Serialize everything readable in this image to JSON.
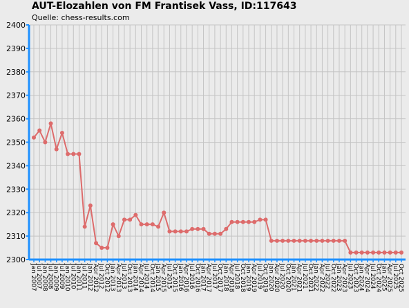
{
  "title": "AUT-Elozahlen von FM Frantisek Vass, ID:117643",
  "subtitle": "Quelle: chess-results.com",
  "colors": {
    "background": "#ebebeb",
    "grid": "#c4c4c4",
    "axis": "#1e90ff",
    "line": "#dd6b6b",
    "marker": "#dd6b6b"
  },
  "chart_data": {
    "type": "line",
    "title": "AUT-Elozahlen von FM Frantisek Vass, ID:117643",
    "subtitle": "Quelle: chess-results.com",
    "xlabel": "",
    "ylabel": "",
    "ylim": [
      2300,
      2400
    ],
    "yticks": [
      2300,
      2310,
      2320,
      2330,
      2340,
      2350,
      2360,
      2370,
      2380,
      2390,
      2400
    ],
    "grid": true,
    "legend": "none",
    "categories": [
      "Jan 2007",
      "Jul 2007",
      "Jan 2008",
      "Jul 2008",
      "Jan 2009",
      "Jul 2009",
      "Jan 2010",
      "Jul 2010",
      "Jan 2011",
      "Jul 2011",
      "Jan 2012",
      "Apr 2012",
      "Jul 2012",
      "Oct 2012",
      "Jan 2013",
      "Apr 2013",
      "Jul 2013",
      "Oct 2013",
      "Jan 2014",
      "Apr 2014",
      "Jul 2014",
      "Oct 2014",
      "Jan 2015",
      "Apr 2015",
      "Jul 2015",
      "Oct 2015",
      "Jan 2016",
      "Apr 2016",
      "Jul 2016",
      "Oct 2016",
      "Jan 2017",
      "Apr 2017",
      "Jul 2017",
      "Oct 2017",
      "Jan 2018",
      "Apr 2018",
      "Jul 2018",
      "Oct 2018",
      "Jan 2019",
      "Apr 2019",
      "Jul 2019",
      "Oct 2019",
      "Jan 2020",
      "Apr 2020",
      "Jul 2020",
      "Oct 2020",
      "Jan 2021",
      "Apr 2021",
      "Jul 2021",
      "Oct 2021",
      "Jan 2022",
      "Apr 2022",
      "Jul 2022",
      "Oct 2022",
      "Jan 2023",
      "Apr 2023",
      "Jul 2023",
      "Oct 2023",
      "Jan 2024",
      "Apr 2024",
      "Jul 2024",
      "Oct 2024",
      "Jan 2025",
      "Apr 2025",
      "Jul 2025",
      "Oct 2025"
    ],
    "series": [
      {
        "values": [
          2352,
          2355,
          2350,
          2358,
          2347,
          2354,
          2345,
          2345,
          2345,
          2314,
          2323,
          2307,
          2305,
          2305,
          2315,
          2310,
          2317,
          2317,
          2319,
          2315,
          2315,
          2315,
          2314,
          2320,
          2312,
          2312,
          2312,
          2312,
          2313,
          2313,
          2313,
          2311,
          2311,
          2311,
          2313,
          2316,
          2316,
          2316,
          2316,
          2316,
          2317,
          2317,
          2308,
          2308,
          2308,
          2308,
          2308,
          2308,
          2308,
          2308,
          2308,
          2308,
          2308,
          2308,
          2308,
          2308,
          2303,
          2303,
          2303,
          2303,
          2303,
          2303,
          2303,
          2303,
          2303,
          2303
        ]
      }
    ]
  }
}
